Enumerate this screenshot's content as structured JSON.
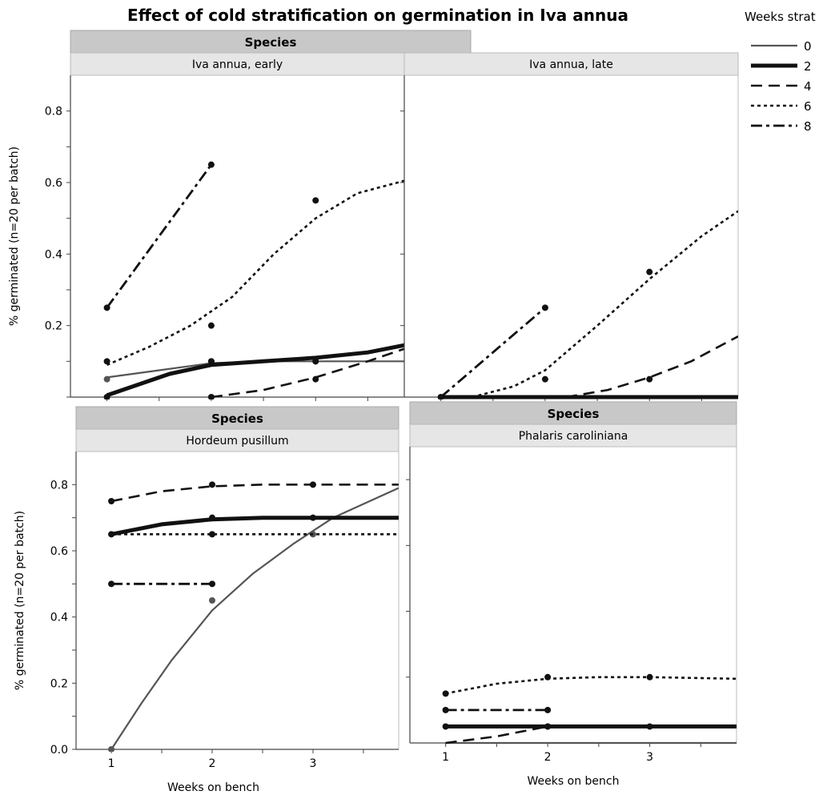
{
  "title": "Effect of cold stratification on germination in Iva annua",
  "legend": {
    "title": "Weeks strat",
    "entries": [
      {
        "label": "0",
        "style": "solid-thin"
      },
      {
        "label": "2",
        "style": "solid-thick"
      },
      {
        "label": "4",
        "style": "dashed"
      },
      {
        "label": "6",
        "style": "dotted"
      },
      {
        "label": "8",
        "style": "dashdot"
      }
    ]
  },
  "colors": {
    "strip_dark": "#c8c8c8",
    "strip_light": "#e6e6e6",
    "line": "#111111",
    "line_grey": "#555555",
    "frame": "#bdbdbd"
  },
  "chart_data": [
    {
      "type": "line",
      "panel_group_label": "Species",
      "panel_label": "Iva annua, early",
      "ylabel": "% germinated (n=20 per batch)",
      "xlabel": "",
      "xlim": [
        0.65,
        3.85
      ],
      "ylim": [
        0,
        0.9
      ],
      "yticks": [
        0.2,
        0.4,
        0.6,
        0.8
      ],
      "xticks": [],
      "series": [
        {
          "name": "0",
          "style": "solid-thin",
          "points": [
            [
              1,
              0.05
            ],
            [
              2,
              0.1
            ],
            [
              3,
              0.1
            ]
          ],
          "curve": [
            [
              1,
              0.055
            ],
            [
              1.5,
              0.075
            ],
            [
              2,
              0.095
            ],
            [
              2.5,
              0.1
            ],
            [
              3,
              0.1
            ],
            [
              3.85,
              0.1
            ]
          ]
        },
        {
          "name": "2",
          "style": "solid-thick",
          "points": [
            [
              1,
              0.0
            ],
            [
              2,
              0.1
            ],
            [
              3,
              0.1
            ]
          ],
          "curve": [
            [
              1,
              0.005
            ],
            [
              1.3,
              0.035
            ],
            [
              1.6,
              0.065
            ],
            [
              2,
              0.09
            ],
            [
              2.5,
              0.1
            ],
            [
              3,
              0.11
            ],
            [
              3.5,
              0.125
            ],
            [
              3.85,
              0.145
            ]
          ]
        },
        {
          "name": "4",
          "style": "dashed",
          "points": [
            [
              2,
              0.0
            ],
            [
              3,
              0.05
            ]
          ],
          "curve": [
            [
              2,
              0.0
            ],
            [
              2.5,
              0.02
            ],
            [
              3,
              0.055
            ],
            [
              3.5,
              0.1
            ],
            [
              3.85,
              0.135
            ]
          ]
        },
        {
          "name": "6",
          "style": "dotted",
          "points": [
            [
              1,
              0.1
            ],
            [
              2,
              0.2
            ],
            [
              3,
              0.55
            ]
          ],
          "curve": [
            [
              1,
              0.09
            ],
            [
              1.4,
              0.14
            ],
            [
              1.8,
              0.2
            ],
            [
              2.2,
              0.28
            ],
            [
              2.6,
              0.4
            ],
            [
              3,
              0.5
            ],
            [
              3.4,
              0.57
            ],
            [
              3.85,
              0.605
            ]
          ]
        },
        {
          "name": "8",
          "style": "dashdot",
          "points": [
            [
              1,
              0.25
            ],
            [
              2,
              0.65
            ]
          ],
          "curve": [
            [
              1,
              0.25
            ],
            [
              2,
              0.65
            ]
          ]
        }
      ]
    },
    {
      "type": "line",
      "panel_group_label": "Species",
      "panel_label": "Iva annua, late",
      "ylabel": "",
      "xlabel": "",
      "xlim": [
        0.65,
        3.85
      ],
      "ylim": [
        0,
        0.9
      ],
      "yticks": [],
      "xticks": [],
      "series": [
        {
          "name": "0",
          "style": "solid-thin",
          "points": [],
          "curve": [
            [
              1,
              0.0
            ],
            [
              3.85,
              0.0
            ]
          ]
        },
        {
          "name": "2",
          "style": "solid-thick",
          "points": [],
          "curve": [
            [
              1,
              0.0
            ],
            [
              3.85,
              0.0
            ]
          ]
        },
        {
          "name": "4",
          "style": "dashed",
          "points": [
            [
              3,
              0.05
            ]
          ],
          "curve": [
            [
              2.2,
              0.0
            ],
            [
              2.6,
              0.02
            ],
            [
              3,
              0.055
            ],
            [
              3.4,
              0.1
            ],
            [
              3.85,
              0.17
            ]
          ]
        },
        {
          "name": "6",
          "style": "dotted",
          "points": [
            [
              2,
              0.05
            ],
            [
              3,
              0.35
            ]
          ],
          "curve": [
            [
              1.3,
              0.0
            ],
            [
              1.7,
              0.03
            ],
            [
              2,
              0.075
            ],
            [
              2.5,
              0.2
            ],
            [
              3,
              0.33
            ],
            [
              3.5,
              0.45
            ],
            [
              3.85,
              0.52
            ]
          ]
        },
        {
          "name": "8",
          "style": "dashdot",
          "points": [
            [
              1,
              0.0
            ],
            [
              2,
              0.25
            ]
          ],
          "curve": [
            [
              1,
              0.0
            ],
            [
              2,
              0.25
            ]
          ]
        }
      ]
    },
    {
      "type": "line",
      "panel_group_label": "Species",
      "panel_label": "Hordeum pusillum",
      "ylabel": "% germinated (n=20 per batch)",
      "xlabel": "Weeks on bench",
      "xlim": [
        0.65,
        3.85
      ],
      "ylim": [
        0,
        0.9
      ],
      "yticks": [
        0.0,
        0.2,
        0.4,
        0.6,
        0.8
      ],
      "xticks": [
        1,
        2,
        3
      ],
      "series": [
        {
          "name": "0",
          "style": "solid-thin",
          "points": [
            [
              1,
              0.0
            ],
            [
              2,
              0.45
            ],
            [
              3,
              0.65
            ]
          ],
          "curve": [
            [
              1,
              0.0
            ],
            [
              1.3,
              0.14
            ],
            [
              1.6,
              0.27
            ],
            [
              2,
              0.42
            ],
            [
              2.4,
              0.53
            ],
            [
              2.8,
              0.62
            ],
            [
              3.2,
              0.7
            ],
            [
              3.85,
              0.79
            ]
          ]
        },
        {
          "name": "2",
          "style": "solid-thick",
          "points": [
            [
              1,
              0.65
            ],
            [
              2,
              0.7
            ],
            [
              3,
              0.7
            ]
          ],
          "curve": [
            [
              1,
              0.65
            ],
            [
              1.5,
              0.68
            ],
            [
              2,
              0.695
            ],
            [
              2.5,
              0.7
            ],
            [
              3,
              0.7
            ],
            [
              3.85,
              0.7
            ]
          ]
        },
        {
          "name": "4",
          "style": "dashed",
          "points": [
            [
              1,
              0.75
            ],
            [
              2,
              0.8
            ],
            [
              3,
              0.8
            ]
          ],
          "curve": [
            [
              1,
              0.75
            ],
            [
              1.5,
              0.78
            ],
            [
              2,
              0.795
            ],
            [
              2.5,
              0.8
            ],
            [
              3,
              0.8
            ],
            [
              3.85,
              0.8
            ]
          ]
        },
        {
          "name": "6",
          "style": "dotted",
          "points": [
            [
              2,
              0.65
            ]
          ],
          "curve": [
            [
              1,
              0.65
            ],
            [
              3.85,
              0.65
            ]
          ]
        },
        {
          "name": "8",
          "style": "dashdot",
          "points": [
            [
              1,
              0.5
            ],
            [
              2,
              0.5
            ]
          ],
          "curve": [
            [
              1,
              0.5
            ],
            [
              2,
              0.5
            ]
          ]
        }
      ]
    },
    {
      "type": "line",
      "panel_group_label": "Species",
      "panel_label": "Phalaris caroliniana",
      "ylabel": "",
      "xlabel": "Weeks on bench",
      "xlim": [
        0.65,
        3.85
      ],
      "ylim": [
        0,
        0.9
      ],
      "yticks": [],
      "xticks": [
        1,
        2,
        3
      ],
      "series": [
        {
          "name": "0",
          "style": "solid-thin",
          "points": [],
          "curve": [
            [
              1,
              0.0
            ],
            [
              3.85,
              0.0
            ]
          ]
        },
        {
          "name": "2",
          "style": "solid-thick",
          "points": [
            [
              1,
              0.05
            ],
            [
              2,
              0.05
            ],
            [
              3,
              0.05
            ]
          ],
          "curve": [
            [
              1,
              0.05
            ],
            [
              3.85,
              0.05
            ]
          ]
        },
        {
          "name": "4",
          "style": "dashed",
          "points": [
            [
              2,
              0.05
            ]
          ],
          "curve": [
            [
              1,
              0.0
            ],
            [
              1.5,
              0.02
            ],
            [
              2,
              0.05
            ]
          ]
        },
        {
          "name": "6",
          "style": "dotted",
          "points": [
            [
              1,
              0.15
            ],
            [
              2,
              0.2
            ],
            [
              3,
              0.2
            ]
          ],
          "curve": [
            [
              1,
              0.15
            ],
            [
              1.5,
              0.18
            ],
            [
              2,
              0.195
            ],
            [
              2.5,
              0.2
            ],
            [
              3,
              0.2
            ],
            [
              3.85,
              0.195
            ]
          ]
        },
        {
          "name": "8",
          "style": "dashdot",
          "points": [
            [
              1,
              0.1
            ],
            [
              2,
              0.1
            ]
          ],
          "curve": [
            [
              1,
              0.1
            ],
            [
              2,
              0.1
            ]
          ]
        }
      ]
    }
  ]
}
